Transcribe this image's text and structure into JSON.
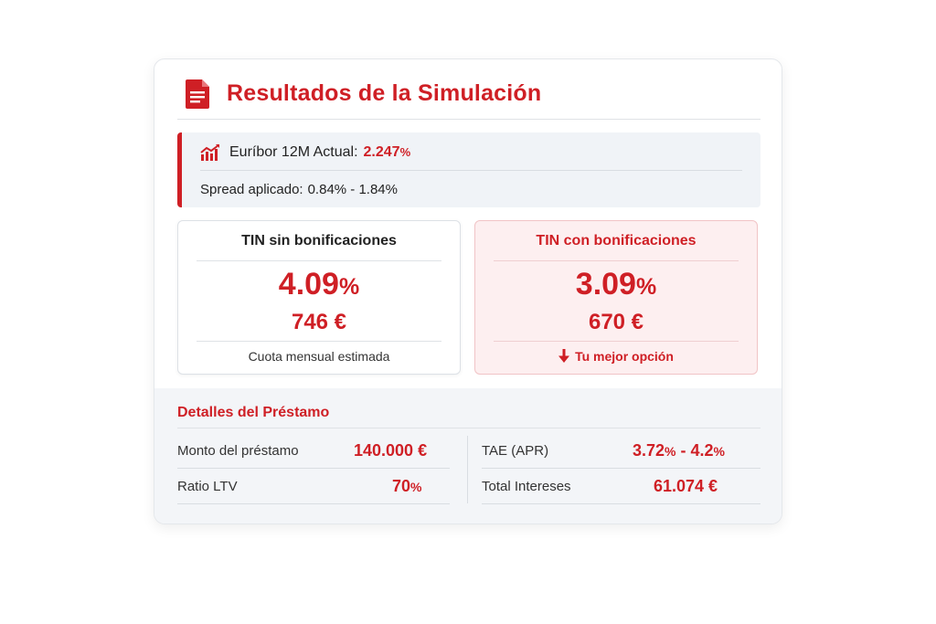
{
  "header": {
    "title": "Resultados de la Simulación",
    "icon": "document-icon"
  },
  "rates": {
    "euribor_label": "Euríbor 12M Actual:",
    "euribor_value": "2.247",
    "spread_label": "Spread aplicado:",
    "spread_value": "0.84% - 1.84%",
    "icon": "chart-trend-icon"
  },
  "tin_without": {
    "title": "TIN sin bonificaciones",
    "rate": "4.09",
    "fee": "746 €",
    "footer": "Cuota mensual estimada"
  },
  "tin_with": {
    "title": "TIN con bonificaciones",
    "rate": "3.09",
    "fee": "670 €",
    "footer": "Tu mejor opción",
    "footer_icon": "arrow-down-icon"
  },
  "details": {
    "title": "Detalles del Préstamo",
    "items": [
      {
        "label": "Monto del préstamo",
        "value": "140.000 €"
      },
      {
        "label": "Ratio LTV",
        "value": "70",
        "unit": "%"
      },
      {
        "label": "TAE (APR)",
        "value_a": "3.72",
        "value_b": "4.2"
      },
      {
        "label": "Total Intereses",
        "value": "61.074 €"
      }
    ]
  },
  "colors": {
    "accent": "#cf1f25",
    "panel": "#f0f3f7",
    "highlight": "#fdeff0"
  }
}
